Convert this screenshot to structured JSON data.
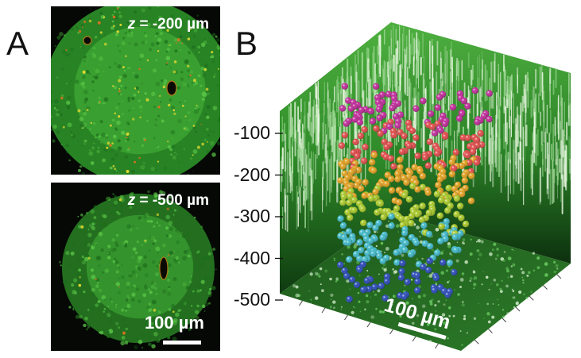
{
  "panels": {
    "a": {
      "letter": "A",
      "top_image": {
        "z_var": "z",
        "z_value": " = -200 µm"
      },
      "bottom_image": {
        "z_var": "z",
        "z_value": " = -500 µm",
        "scale_label": "100 µm"
      }
    },
    "b": {
      "letter": "B",
      "depth_ticks": [
        "-100",
        "-200",
        "-300",
        "-400",
        "-500"
      ],
      "scale_label": "100 µm",
      "sphere_colors_by_depth": [
        "#c02a9a",
        "#e04a4a",
        "#e0a020",
        "#a8c828",
        "#40b8c8",
        "#2a4ab8"
      ]
    }
  },
  "colors": {
    "background": "#ffffff",
    "tissue_green": "#2f9a2a",
    "cell_highlight": "#d8d020"
  }
}
